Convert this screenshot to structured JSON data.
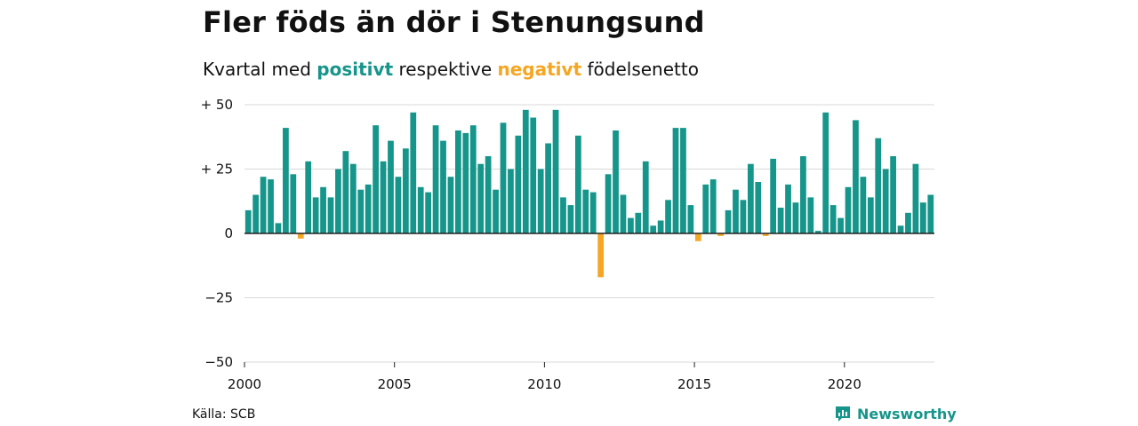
{
  "header": {
    "title": "Fler föds än dör i Stenungsund",
    "subtitle_prefix": "Kvartal med",
    "subtitle_positive": "positivt",
    "subtitle_middle": "respektive",
    "subtitle_negative": "negativt",
    "subtitle_suffix": "födelsenetto"
  },
  "footer": {
    "source": "Källa: SCB",
    "brand": "Newsworthy",
    "brand_icon": "newsworthy-logo-icon"
  },
  "colors": {
    "positive": "#16958a",
    "negative": "#f5a623",
    "grid": "#d9d9d9",
    "axis": "#222222"
  },
  "chart_data": {
    "type": "bar",
    "title": "Fler föds än dör i Stenungsund",
    "subtitle": "Kvartal med positivt respektive negativt födelsenetto",
    "xlabel": "",
    "ylabel": "",
    "x_start": 2000,
    "periods_per_year": 4,
    "x_ticks": [
      2000,
      2005,
      2010,
      2015,
      2020
    ],
    "y_ticks": [
      {
        "value": 50,
        "label": "+ 50"
      },
      {
        "value": 25,
        "label": "+ 25"
      },
      {
        "value": 0,
        "label": "0"
      },
      {
        "value": -25,
        "label": "−25"
      },
      {
        "value": -50,
        "label": "−50"
      }
    ],
    "ylim": [
      -50,
      50
    ],
    "grid": true,
    "values": [
      9,
      15,
      22,
      21,
      4,
      41,
      23,
      -2,
      28,
      14,
      18,
      14,
      25,
      32,
      27,
      17,
      19,
      42,
      28,
      36,
      22,
      33,
      47,
      18,
      16,
      42,
      36,
      22,
      40,
      39,
      42,
      27,
      30,
      17,
      43,
      25,
      38,
      48,
      45,
      25,
      35,
      48,
      14,
      11,
      38,
      17,
      16,
      -17,
      23,
      40,
      15,
      6,
      8,
      28,
      3,
      5,
      13,
      41,
      41,
      11,
      -3,
      19,
      21,
      -1,
      9,
      17,
      13,
      27,
      20,
      -1,
      29,
      10,
      19,
      12,
      30,
      14,
      1,
      47,
      11,
      6,
      18,
      44,
      22,
      14,
      37,
      25,
      30,
      3,
      8,
      27,
      12,
      15
    ]
  }
}
